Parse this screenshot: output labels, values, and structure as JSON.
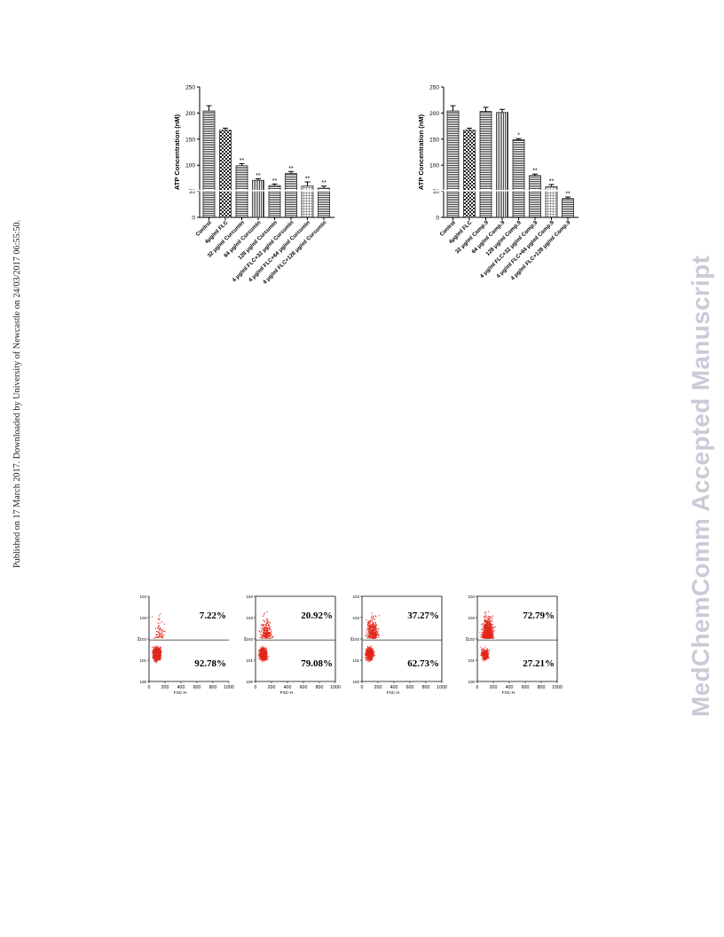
{
  "side_note": "Published on 17 March 2017. Downloaded by University of Newcastle on 24/03/2017 06:55:50.",
  "watermark": "MedChemComm Accepted Manuscript",
  "chart_data": [
    {
      "type": "bar",
      "ylabel": "ATP Concentration (nM)",
      "ylim": [
        0,
        250
      ],
      "yticks": [
        0,
        50,
        100,
        150,
        200,
        250
      ],
      "grid": false,
      "categories": [
        "Control",
        "4μg/ml FLC",
        "32 μg/ml Curcumin",
        "64 μg/ml Curcumin",
        "128 μg/ml Curcumin",
        "4 μg/ml FLC+32 μg/ml Curcumin",
        "4 μg/ml FLC+64 μg/ml Curcumin",
        "4 μg/ml FLC+128 μg/ml Curcumin"
      ],
      "values": [
        204,
        167,
        99,
        71,
        61,
        84,
        60,
        56
      ],
      "errors": [
        10,
        4,
        4,
        3,
        3,
        4,
        8,
        4
      ],
      "annotations": [
        "",
        "",
        "**",
        "**",
        "**",
        "**",
        "**",
        "**"
      ],
      "patterns": [
        "hlines",
        "checker",
        "hlines",
        "vlines",
        "hlines",
        "hlines",
        "grid",
        "hlines"
      ]
    },
    {
      "type": "bar",
      "ylabel": "ATP Concentration (nM)",
      "ylim": [
        0,
        250
      ],
      "yticks": [
        0,
        50,
        100,
        150,
        200,
        250
      ],
      "grid": false,
      "categories": [
        "Control",
        "4μg/ml FLC",
        "32 μg/ml Comp.9",
        "64 μg/ml Comp.9",
        "128 μg/ml Comp.9",
        "4 μg/ml FLC+32 μg/ml Comp.9",
        "4 μg/ml FLC+64 μg/ml Comp.9",
        "4 μg/ml FLC+128 μg/ml Comp.9"
      ],
      "values": [
        204,
        167,
        203,
        201,
        149,
        80,
        59,
        36
      ],
      "errors": [
        10,
        4,
        8,
        6,
        2,
        3,
        4,
        3
      ],
      "annotations": [
        "",
        "",
        "",
        "",
        "*",
        "**",
        "**",
        "**"
      ],
      "patterns": [
        "hlines",
        "checker",
        "hlines",
        "vlines",
        "hlines",
        "hlines",
        "grid",
        "hlines"
      ]
    },
    {
      "type": "scatter",
      "xlabel": "FSC-H",
      "ylabel": "PI",
      "xlim": [
        0,
        1000
      ],
      "xticks": [
        0,
        200,
        400,
        600,
        800,
        1000
      ],
      "ylim": [
        0,
        10000
      ],
      "yscale": "log",
      "upper_pct": "7.22%",
      "lower_pct": "92.78%"
    },
    {
      "type": "scatter",
      "xlabel": "FSC-H",
      "ylabel": "PI",
      "xlim": [
        0,
        1000
      ],
      "xticks": [
        0,
        200,
        400,
        600,
        800,
        1000
      ],
      "ylim": [
        0,
        10000
      ],
      "yscale": "log",
      "upper_pct": "20.92%",
      "lower_pct": "79.08%"
    },
    {
      "type": "scatter",
      "xlabel": "FSC-H",
      "ylabel": "PI",
      "xlim": [
        0,
        1000
      ],
      "xticks": [
        0,
        200,
        400,
        600,
        800,
        1000
      ],
      "ylim": [
        0,
        10000
      ],
      "yscale": "log",
      "upper_pct": "37.27%",
      "lower_pct": "62.73%"
    },
    {
      "type": "scatter",
      "xlabel": "FSC-H",
      "ylabel": "PI",
      "xlim": [
        0,
        1000
      ],
      "xticks": [
        0,
        200,
        400,
        600,
        800,
        1000
      ],
      "ylim": [
        0,
        10000
      ],
      "yscale": "log",
      "upper_pct": "72.79%",
      "lower_pct": "27.21%"
    }
  ],
  "colors": {
    "dot": "#e0281c",
    "bar_stroke": "#222222",
    "watermark": "#c9cbd6"
  }
}
